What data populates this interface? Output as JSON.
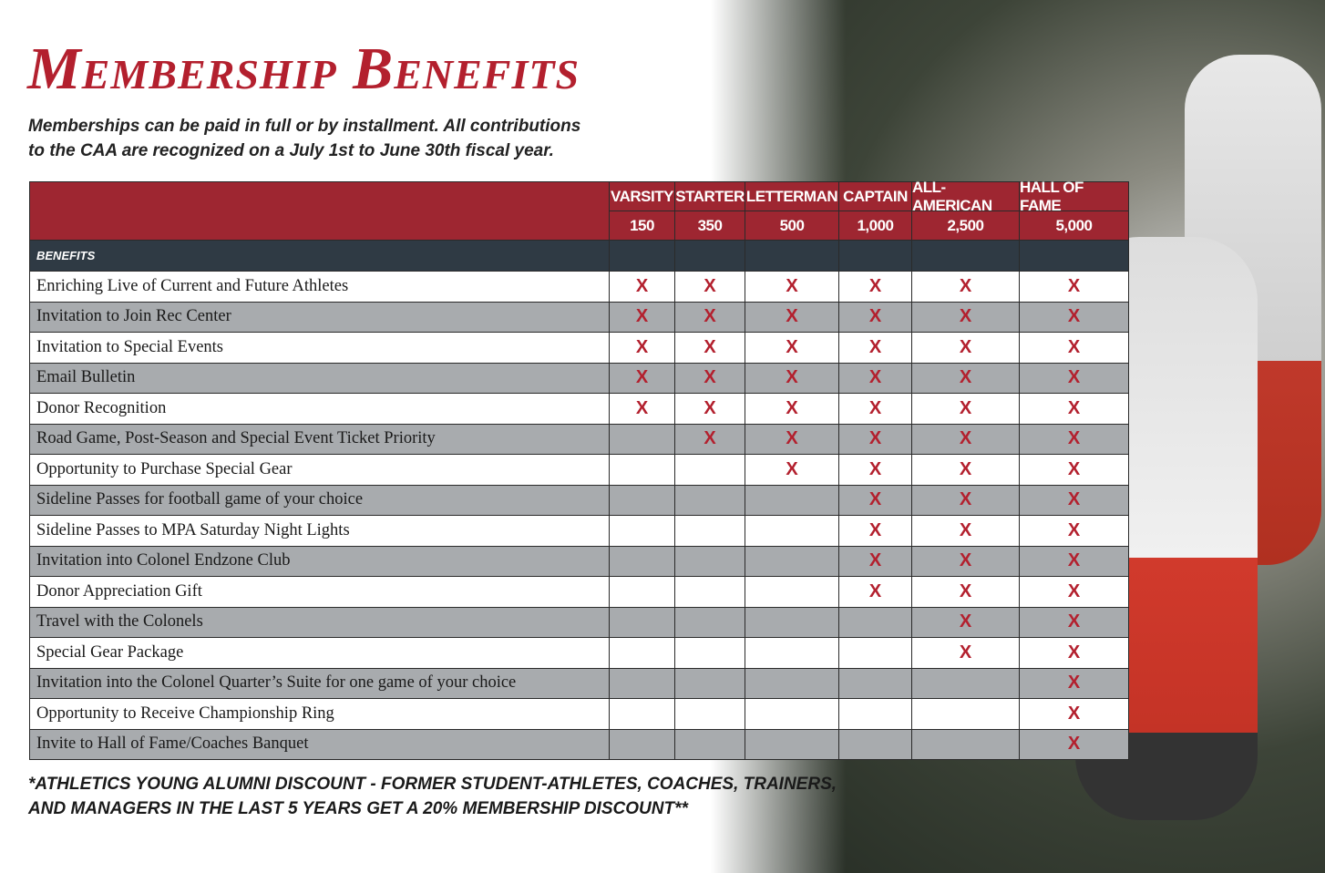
{
  "header": {
    "title": "Membership Benefits",
    "subtitle": [
      "Memberships can be paid in full or by installment. All contributions",
      "to the CAA are recognized on a July 1st to June 30th fiscal year."
    ]
  },
  "table": {
    "tiers": [
      {
        "name": "VARSITY",
        "amount": "150"
      },
      {
        "name": "STARTER",
        "amount": "350"
      },
      {
        "name": "LETTERMAN",
        "amount": "500"
      },
      {
        "name": "CAPTAIN",
        "amount": "1,000"
      },
      {
        "name": "ALL-AMERICAN",
        "amount": "2,500"
      },
      {
        "name": "HALL OF FAME",
        "amount": "5,000"
      }
    ],
    "section": "BENEFITS",
    "rows": [
      {
        "benefit": "Enriching Live of Current and Future Athletes",
        "marks": [
          "X",
          "X",
          "X",
          "X",
          "X",
          "X"
        ]
      },
      {
        "benefit": "Invitation to Join Rec Center",
        "marks": [
          "X",
          "X",
          "X",
          "X",
          "X",
          "X"
        ]
      },
      {
        "benefit": "Invitation to Special Events",
        "marks": [
          "X",
          "X",
          "X",
          "X",
          "X",
          "X"
        ]
      },
      {
        "benefit": "Email Bulletin",
        "marks": [
          "X",
          "X",
          "X",
          "X",
          "X",
          "X"
        ]
      },
      {
        "benefit": "Donor Recognition",
        "marks": [
          "X",
          "X",
          "X",
          "X",
          "X",
          "X"
        ]
      },
      {
        "benefit": "Road Game, Post-Season and Special Event Ticket Priority",
        "marks": [
          null,
          "X",
          "X",
          "X",
          "X",
          "X"
        ]
      },
      {
        "benefit": "Opportunity to Purchase Special Gear",
        "marks": [
          null,
          null,
          "X",
          "X",
          "X",
          "X"
        ]
      },
      {
        "benefit": "Sideline Passes for football game of your choice",
        "marks": [
          null,
          null,
          null,
          "X",
          "X",
          "X"
        ]
      },
      {
        "benefit": "Sideline Passes to MPA Saturday Night Lights",
        "marks": [
          null,
          null,
          null,
          "X",
          "X",
          "X"
        ]
      },
      {
        "benefit": "Invitation into Colonel Endzone Club",
        "marks": [
          null,
          null,
          null,
          "X",
          "X",
          "X"
        ]
      },
      {
        "benefit": "Donor Appreciation Gift",
        "marks": [
          null,
          null,
          null,
          "X",
          "X",
          "X"
        ]
      },
      {
        "benefit": "Travel with the Colonels",
        "marks": [
          null,
          null,
          null,
          null,
          "X",
          "X"
        ]
      },
      {
        "benefit": "Special Gear Package",
        "marks": [
          null,
          null,
          null,
          null,
          "X",
          "X"
        ]
      },
      {
        "benefit": "Invitation into the Colonel Quarter’s Suite for one game of your choice",
        "marks": [
          null,
          null,
          null,
          null,
          null,
          "X"
        ]
      },
      {
        "benefit": "Opportunity to Receive Championship Ring",
        "marks": [
          null,
          null,
          null,
          null,
          null,
          "X"
        ]
      },
      {
        "benefit": "Invite to Hall of Fame/Coaches Banquet",
        "marks": [
          null,
          null,
          null,
          null,
          null,
          "X"
        ]
      }
    ]
  },
  "footer": {
    "note": [
      "*ATHLETICS YOUNG ALUMNI DISCOUNT - FORMER STUDENT-ATHLETES, COACHES, TRAINERS,",
      "AND MANAGERS IN THE LAST 5 YEARS GET A 20% MEMBERSHIP DISCOUNT**"
    ]
  }
}
